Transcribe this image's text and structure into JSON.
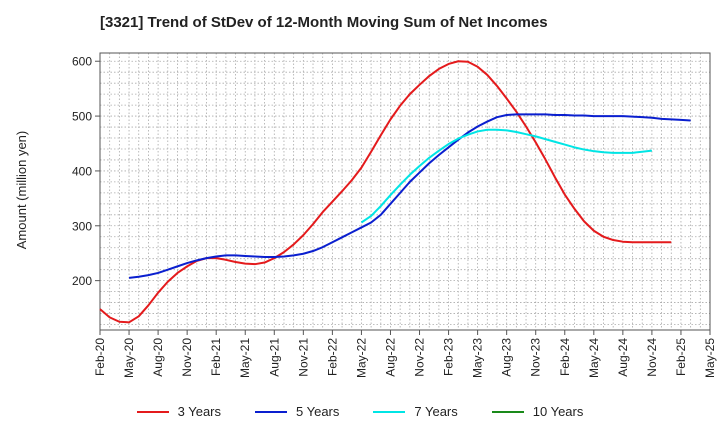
{
  "chart_data": {
    "type": "line",
    "title": "[3321]  Trend of StDev of 12-Month Moving Sum of Net Incomes",
    "xlabel": "",
    "ylabel": "Amount (million yen)",
    "ylim": [
      110,
      615
    ],
    "yticks": [
      200,
      300,
      400,
      500,
      600
    ],
    "x_tick_labels": [
      "Feb-20",
      "May-20",
      "Aug-20",
      "Nov-20",
      "Feb-21",
      "May-21",
      "Aug-21",
      "Nov-21",
      "Feb-22",
      "May-22",
      "Aug-22",
      "Nov-22",
      "Feb-23",
      "May-23",
      "Aug-23",
      "Nov-23",
      "Feb-24",
      "May-24",
      "Aug-24",
      "Nov-24",
      "Feb-25",
      "May-25"
    ],
    "grid": true,
    "legend_position": "bottom",
    "series": [
      {
        "name": "3 Years",
        "color": "#e41a1c",
        "start_index": 0,
        "values": [
          148,
          133,
          125,
          124,
          135,
          155,
          178,
          198,
          214,
          226,
          236,
          241,
          241,
          238,
          234,
          231,
          230,
          233,
          241,
          252,
          266,
          283,
          303,
          325,
          344,
          363,
          383,
          406,
          435,
          465,
          494,
          519,
          540,
          557,
          573,
          586,
          595,
          600,
          599,
          590,
          575,
          555,
          532,
          508,
          481,
          452,
          421,
          388,
          357,
          331,
          308,
          291,
          280,
          274,
          271,
          270,
          270,
          270,
          270,
          270
        ]
      },
      {
        "name": "5 Years",
        "color": "#0a1fcf",
        "start_index": 3,
        "values": [
          205,
          207,
          210,
          214,
          220,
          226,
          232,
          237,
          241,
          244,
          246,
          246,
          245,
          244,
          243,
          243,
          244,
          246,
          249,
          254,
          261,
          270,
          279,
          288,
          297,
          306,
          320,
          340,
          360,
          380,
          397,
          414,
          429,
          443,
          457,
          470,
          481,
          490,
          498,
          502,
          503,
          503,
          503,
          503,
          502,
          502,
          501,
          501,
          500,
          500,
          500,
          500,
          499,
          498,
          497,
          495,
          494,
          493,
          492
        ]
      },
      {
        "name": "7 Years",
        "color": "#00e5e5",
        "start_index": 27,
        "values": [
          306,
          318,
          336,
          356,
          375,
          393,
          409,
          424,
          437,
          449,
          459,
          466,
          472,
          475,
          475,
          474,
          471,
          467,
          463,
          458,
          453,
          448,
          443,
          439,
          436,
          434,
          433,
          433,
          433,
          435,
          437
        ]
      },
      {
        "name": "10 Years",
        "color": "#1a8a1a",
        "start_index": 0,
        "values": []
      }
    ]
  }
}
